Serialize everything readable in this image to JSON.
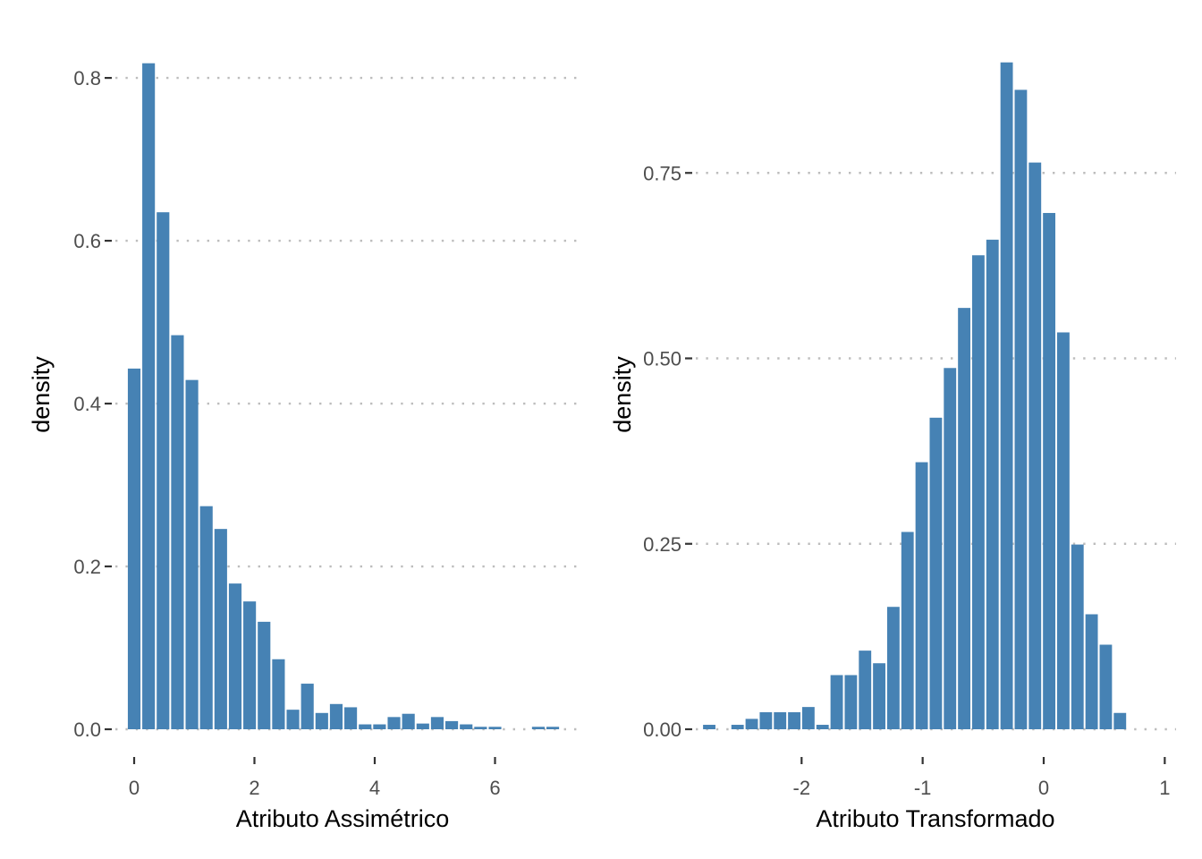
{
  "chart_data": [
    {
      "type": "bar",
      "subtype": "histogram",
      "xlabel": "Atributo Assimétrico",
      "ylabel": "density",
      "bar_color": "#4682b4",
      "grid": "horizontal dotted",
      "xlim": [
        -0.2,
        7.3
      ],
      "ylim": [
        0,
        0.82
      ],
      "x_ticks": [
        0,
        2,
        4,
        6
      ],
      "x_tick_labels": [
        "0",
        "2",
        "4",
        "6"
      ],
      "y_ticks": [
        0,
        0.2,
        0.4,
        0.6,
        0.8
      ],
      "y_tick_labels": [
        "0.0",
        "0.2",
        "0.4",
        "0.6",
        "0.8"
      ],
      "bin_width": 0.24,
      "bin_centers": [
        0,
        0.24,
        0.48,
        0.72,
        0.96,
        1.2,
        1.44,
        1.68,
        1.92,
        2.16,
        2.4,
        2.64,
        2.88,
        3.12,
        3.36,
        3.6,
        3.84,
        4.08,
        4.32,
        4.56,
        4.8,
        5.04,
        5.28,
        5.52,
        5.76,
        6.0,
        6.24,
        6.48,
        6.72,
        6.96
      ],
      "values": [
        0.443,
        0.818,
        0.635,
        0.484,
        0.429,
        0.274,
        0.246,
        0.179,
        0.157,
        0.132,
        0.086,
        0.024,
        0.056,
        0.02,
        0.031,
        0.027,
        0.006,
        0.006,
        0.015,
        0.019,
        0.007,
        0.015,
        0.01,
        0.006,
        0.003,
        0.003,
        0,
        0,
        0.003,
        0.003
      ]
    },
    {
      "type": "bar",
      "subtype": "histogram",
      "xlabel": "Atributo Transformado",
      "ylabel": "density",
      "bar_color": "#4682b4",
      "grid": "horizontal dotted",
      "xlim": [
        -2.95,
        1.0
      ],
      "ylim": [
        0,
        0.9
      ],
      "x_ticks": [
        -2,
        -1,
        0,
        1
      ],
      "x_tick_labels": [
        "-2",
        "-1",
        "0",
        "1"
      ],
      "y_ticks": [
        0,
        0.25,
        0.5,
        0.75
      ],
      "y_tick_labels": [
        "0.00",
        "0.25",
        "0.50",
        "0.75"
      ],
      "bin_width": 0.117,
      "bin_centers": [
        -2.88,
        -2.763,
        -2.646,
        -2.529,
        -2.412,
        -2.295,
        -2.178,
        -2.061,
        -1.944,
        -1.827,
        -1.71,
        -1.593,
        -1.476,
        -1.359,
        -1.242,
        -1.125,
        -1.008,
        -0.891,
        -0.774,
        -0.657,
        -0.54,
        -0.423,
        -0.306,
        -0.189,
        -0.072,
        0.045,
        0.162,
        0.279,
        0.396,
        0.513,
        0.63,
        0.747
      ],
      "values": [
        0,
        0.006,
        0,
        0.006,
        0.014,
        0.023,
        0.023,
        0.023,
        0.03,
        0.006,
        0.073,
        0.073,
        0.106,
        0.089,
        0.165,
        0.266,
        0.36,
        0.42,
        0.487,
        0.568,
        0.639,
        0.66,
        0.899,
        0.862,
        0.764,
        0.696,
        0.535,
        0.249,
        0.155,
        0.114,
        0.022,
        0.0
      ]
    }
  ]
}
